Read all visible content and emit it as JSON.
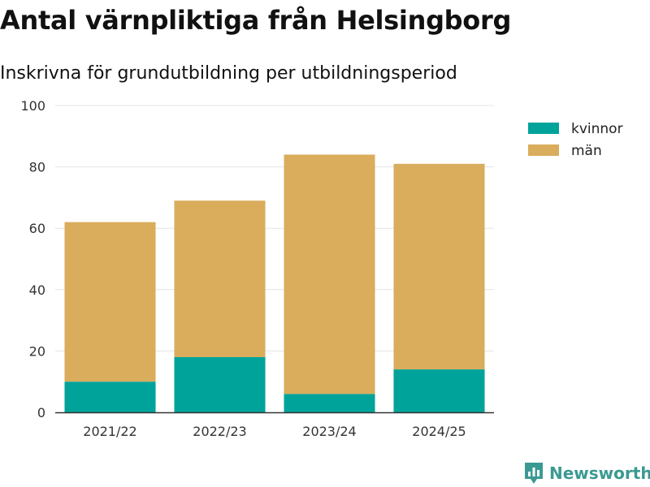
{
  "header": {
    "title": "Antal värnpliktiga från Helsingborg",
    "subtitle": "Inskrivna för grundutbildning per utbildningsperiod"
  },
  "branding": {
    "name": "Newsworthy",
    "icon": "newsworthy-logo-icon",
    "color": "#3a9a92"
  },
  "chart_data": {
    "type": "bar",
    "stacked": true,
    "categories": [
      "2021/22",
      "2022/23",
      "2023/24",
      "2024/25"
    ],
    "series": [
      {
        "name": "kvinnor",
        "color": "#00a39a",
        "values": [
          10,
          18,
          6,
          14
        ]
      },
      {
        "name": "män",
        "color": "#d9ad5c",
        "values": [
          52,
          51,
          78,
          67
        ]
      }
    ],
    "title": "Antal värnpliktiga från Helsingborg",
    "subtitle": "Inskrivna för grundutbildning per utbildningsperiod",
    "xlabel": "",
    "ylabel": "",
    "ylim": [
      0,
      100
    ],
    "yticks": [
      0,
      20,
      40,
      60,
      80,
      100
    ],
    "grid": true,
    "legend": "top-right"
  }
}
